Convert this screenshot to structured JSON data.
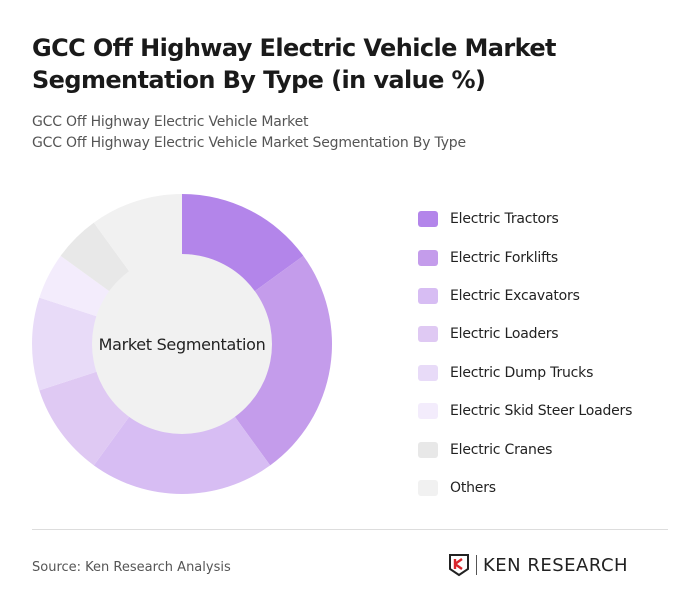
{
  "title": "GCC Off Highway Electric Vehicle Market Segmentation By Type (in value %)",
  "subtitle1": "GCC Off Highway Electric Vehicle Market",
  "subtitle2": "GCC Off Highway Electric Vehicle Market Segmentation By Type",
  "source": "Source: Ken Research Analysis",
  "logo_text": "KEN RESEARCH",
  "chart_data": {
    "type": "pie",
    "variant": "donut",
    "center_label": "Market Segmentation",
    "legend_position": "right",
    "categories": [
      "Electric Tractors",
      "Electric Forklifts",
      "Electric Excavators",
      "Electric Loaders",
      "Electric Dump Trucks",
      "Electric Skid Steer Loaders",
      "Electric Cranes",
      "Others"
    ],
    "values": [
      15,
      25,
      20,
      10,
      10,
      5,
      5,
      10
    ],
    "colors": [
      "#b385ea",
      "#c49ceb",
      "#d7bdf3",
      "#dfc9f3",
      "#e8dbf8",
      "#f3ecfc",
      "#e8e8e8",
      "#f1f1f1"
    ]
  }
}
